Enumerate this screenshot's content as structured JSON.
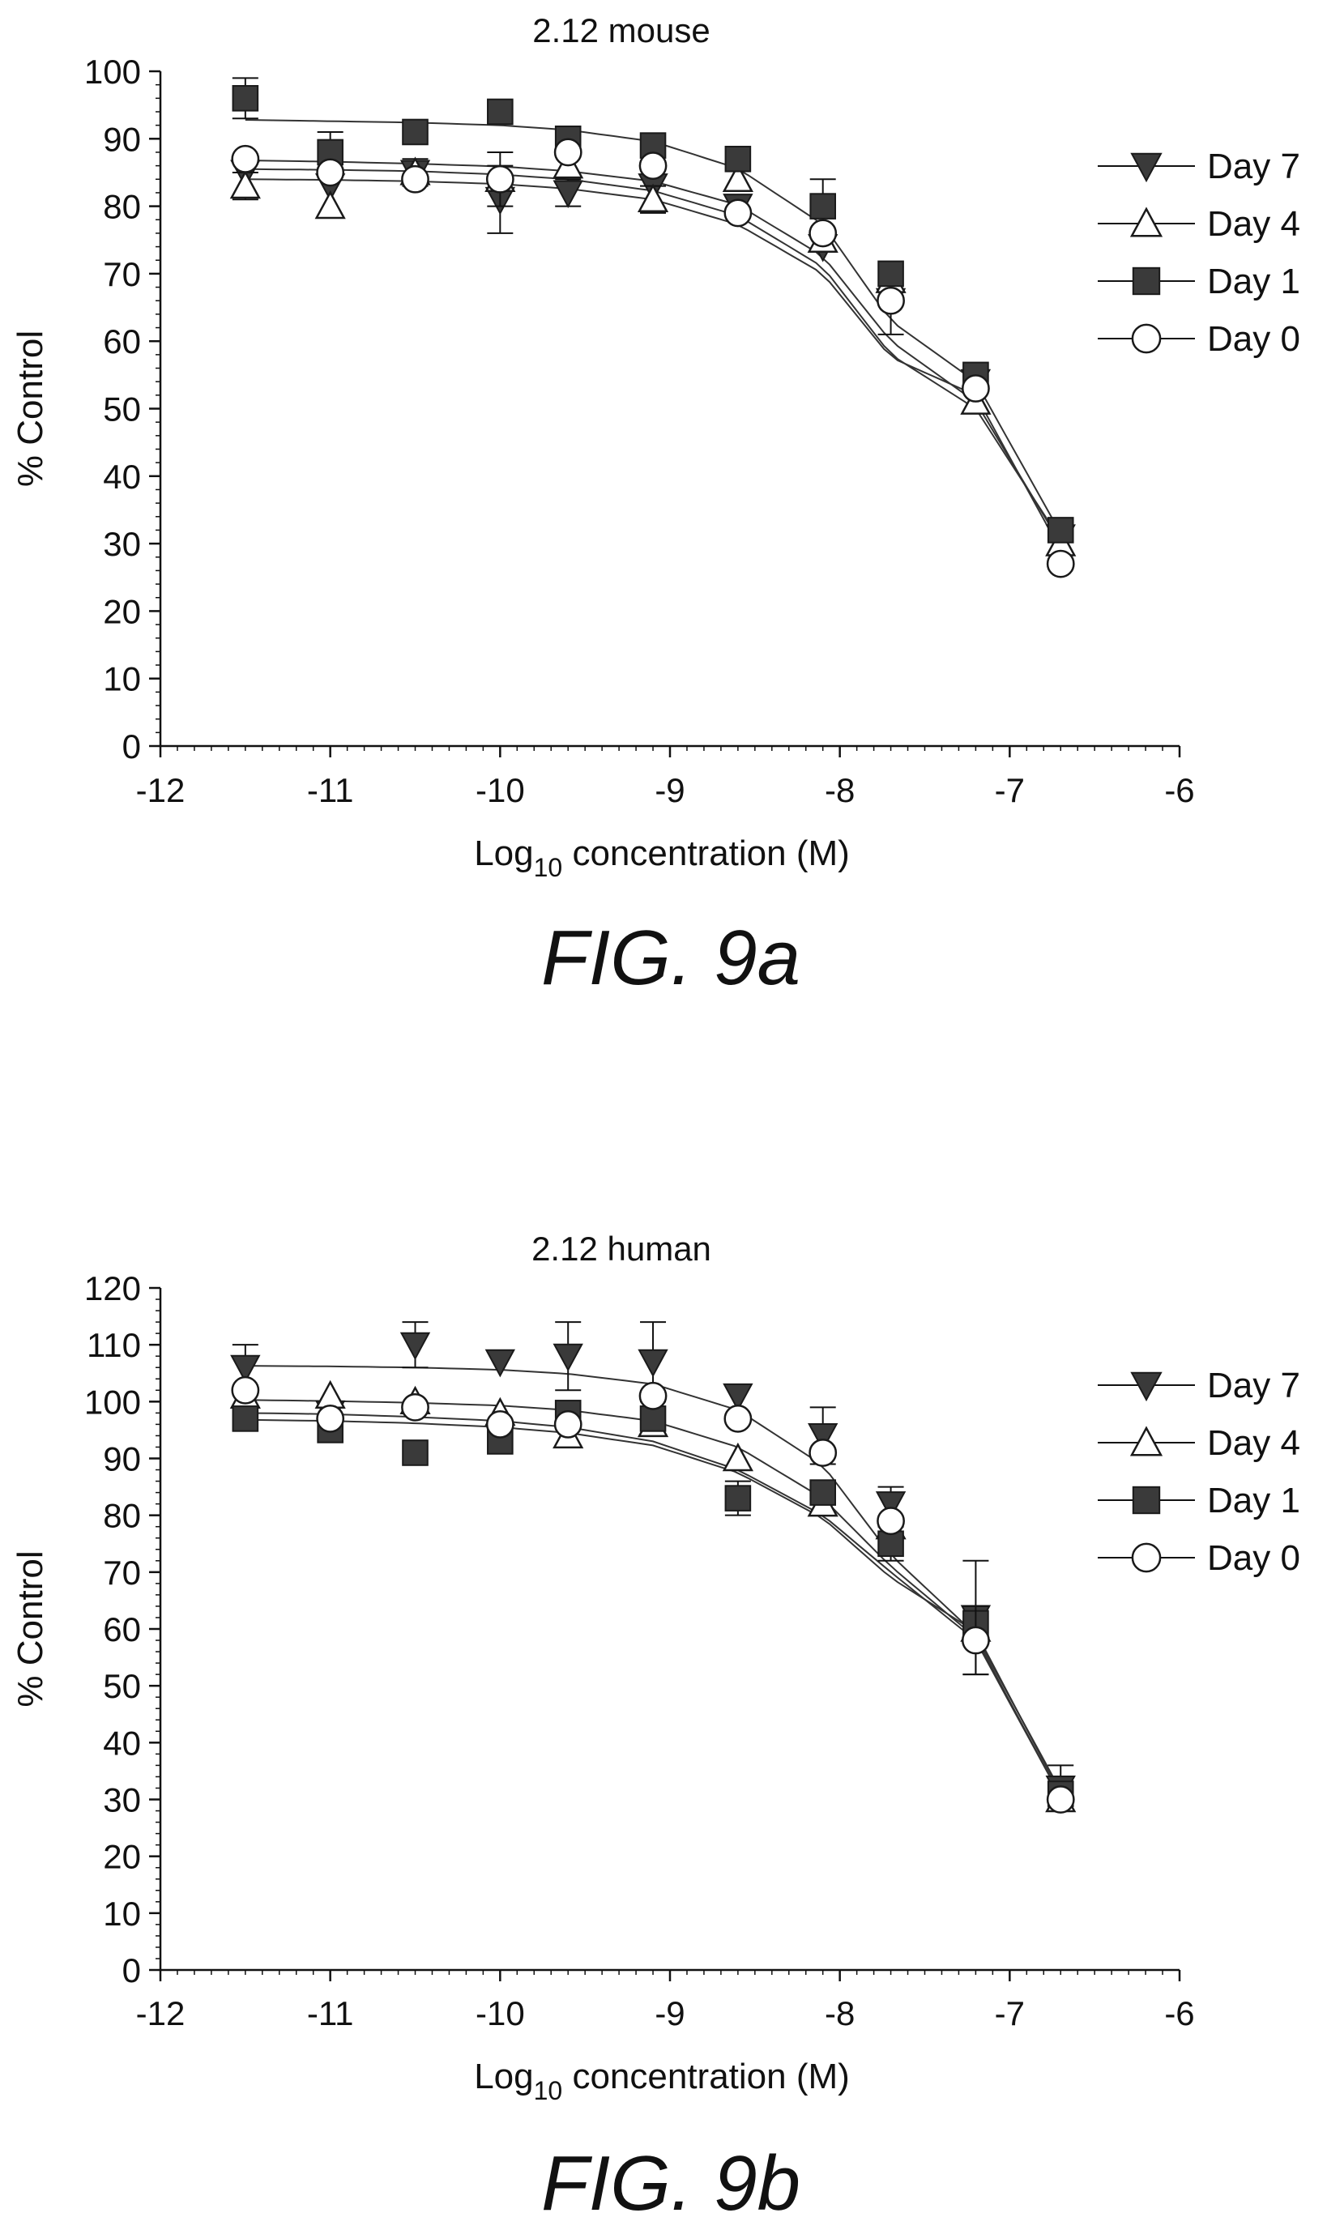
{
  "chart_data": [
    {
      "type": "scatter",
      "title": "2.12 mouse",
      "ylabel": "% Control",
      "xlabel_main": "Log",
      "xlabel_sub": "10",
      "xlabel_rest": " concentration (M)",
      "figure_label": "FIG. 9a",
      "xlim": [
        -12,
        -6
      ],
      "ylim": [
        0,
        100
      ],
      "x_ticks": [
        "-12",
        "-11",
        "-10",
        "-9",
        "-8",
        "-7",
        "-6"
      ],
      "y_ticks": [
        "0",
        "10",
        "20",
        "30",
        "40",
        "50",
        "60",
        "70",
        "80",
        "90",
        "100"
      ],
      "legend_position": "right",
      "series": [
        {
          "name": "Day 7",
          "marker": "triangle-down-filled",
          "x": [
            -11.5,
            -11,
            -10.5,
            -10,
            -9.6,
            -9.1,
            -8.6,
            -8.1,
            -7.7,
            -7.2,
            -6.7
          ],
          "y": [
            85,
            83,
            85,
            81,
            82,
            83,
            80,
            74,
            66,
            54,
            31
          ],
          "err": [
            0,
            0,
            0,
            5,
            2,
            0,
            0,
            0,
            5,
            0,
            0
          ],
          "fit": [
            85.5,
            85.4,
            85.2,
            84.7,
            84.0,
            82.3,
            78.6,
            71.0,
            58.0,
            50.0,
            30.5
          ]
        },
        {
          "name": "Day 4",
          "marker": "triangle-up-open",
          "x": [
            -11.5,
            -11,
            -10.5,
            -10,
            -9.6,
            -9.1,
            -8.6,
            -8.1,
            -7.7,
            -7.2,
            -6.7
          ],
          "y": [
            83,
            80,
            85,
            84,
            86,
            81,
            84,
            75,
            69,
            51,
            30
          ],
          "err": [
            2,
            0,
            2,
            4,
            0,
            2,
            0,
            0,
            0,
            0,
            0
          ],
          "fit": [
            86.8,
            86.6,
            86.3,
            85.9,
            85.2,
            83.7,
            80.2,
            72.6,
            60.0,
            51.0,
            30.0
          ]
        },
        {
          "name": "Day 1",
          "marker": "square-filled",
          "x": [
            -11.5,
            -11,
            -10.5,
            -10,
            -9.6,
            -9.1,
            -8.6,
            -8.1,
            -7.7,
            -7.2,
            -6.7
          ],
          "y": [
            96,
            88,
            91,
            94,
            90,
            89,
            87,
            80,
            70,
            55,
            32
          ],
          "err": [
            3,
            3,
            0,
            0,
            0,
            0,
            0,
            4,
            0,
            0,
            0
          ],
          "fit": [
            92.8,
            92.6,
            92.4,
            92.0,
            91.3,
            89.6,
            85.6,
            77.3,
            63.0,
            54.0,
            31.5
          ]
        },
        {
          "name": "Day 0",
          "marker": "circle-open",
          "x": [
            -11.5,
            -11,
            -10.5,
            -10,
            -9.6,
            -9.1,
            -8.6,
            -8.1,
            -7.7,
            -7.2,
            -6.7
          ],
          "y": [
            87,
            85,
            84,
            84,
            88,
            86,
            79,
            76,
            66,
            53,
            27
          ],
          "err": [
            0,
            0,
            0,
            0,
            0,
            0,
            0,
            0,
            0,
            0,
            0
          ],
          "fit": [
            84.0,
            83.9,
            83.7,
            83.3,
            82.6,
            81.0,
            77.3,
            70.0,
            57.6,
            52.0,
            29.0
          ]
        }
      ]
    },
    {
      "type": "scatter",
      "title": "2.12 human",
      "ylabel": "% Control",
      "xlabel_main": "Log",
      "xlabel_sub": "10",
      "xlabel_rest": " concentration (M)",
      "figure_label": "FIG. 9b",
      "xlim": [
        -12,
        -6
      ],
      "ylim": [
        0,
        120
      ],
      "x_ticks": [
        "-12",
        "-11",
        "-10",
        "-9",
        "-8",
        "-7",
        "-6"
      ],
      "y_ticks": [
        "0",
        "10",
        "20",
        "30",
        "40",
        "50",
        "60",
        "70",
        "80",
        "90",
        "100",
        "110",
        "120"
      ],
      "legend_position": "right",
      "series": [
        {
          "name": "Day 7",
          "marker": "triangle-down-filled",
          "x": [
            -11.5,
            -11,
            -10.5,
            -10,
            -9.6,
            -9.1,
            -8.6,
            -8.1,
            -7.7,
            -7.2,
            -6.7
          ],
          "y": [
            106,
            98,
            110,
            107,
            108,
            107,
            101,
            94,
            82,
            62,
            32
          ],
          "err": [
            4,
            0,
            4,
            0,
            6,
            7,
            0,
            5,
            3,
            10,
            4
          ],
          "fit": [
            106.3,
            106.2,
            106.0,
            105.6,
            104.9,
            103.1,
            98.5,
            88.8,
            73.0,
            59.0,
            31.5
          ]
        },
        {
          "name": "Day 4",
          "marker": "triangle-up-open",
          "x": [
            -11.5,
            -11,
            -10.5,
            -10,
            -9.6,
            -9.1,
            -8.6,
            -8.1,
            -7.7,
            -7.2,
            -6.7
          ],
          "y": [
            101,
            101,
            100,
            98,
            94,
            96,
            90,
            82,
            78,
            60,
            30
          ],
          "err": [
            0,
            0,
            0,
            0,
            0,
            0,
            0,
            0,
            0,
            0,
            0
          ],
          "fit": [
            98.0,
            97.8,
            97.3,
            96.6,
            95.5,
            93.0,
            88.0,
            80.0,
            70.0,
            58.0,
            30.5
          ]
        },
        {
          "name": "Day 1",
          "marker": "square-filled",
          "x": [
            -11.5,
            -11,
            -10.5,
            -10,
            -9.6,
            -9.1,
            -8.6,
            -8.1,
            -7.7,
            -7.2,
            -6.7
          ],
          "y": [
            97,
            95,
            91,
            93,
            98,
            97,
            83,
            84,
            75,
            61,
            31
          ],
          "err": [
            0,
            0,
            0,
            0,
            0,
            0,
            3,
            0,
            3,
            0,
            0
          ],
          "fit": [
            96.8,
            96.6,
            96.2,
            95.5,
            94.5,
            92.3,
            87.5,
            79.5,
            69.0,
            59.5,
            31.0
          ]
        },
        {
          "name": "Day 0",
          "marker": "circle-open",
          "x": [
            -11.5,
            -11,
            -10.5,
            -10,
            -9.6,
            -9.1,
            -8.6,
            -8.1,
            -7.7,
            -7.2,
            -6.7
          ],
          "y": [
            102,
            97,
            99,
            96,
            96,
            101,
            97,
            91,
            79,
            58,
            30
          ],
          "err": [
            0,
            0,
            0,
            0,
            0,
            0,
            0,
            0,
            0,
            6,
            0
          ],
          "fit": [
            100.3,
            100.1,
            99.8,
            99.3,
            98.5,
            96.6,
            92.0,
            83.0,
            71.0,
            58.5,
            30.5
          ]
        }
      ]
    }
  ]
}
